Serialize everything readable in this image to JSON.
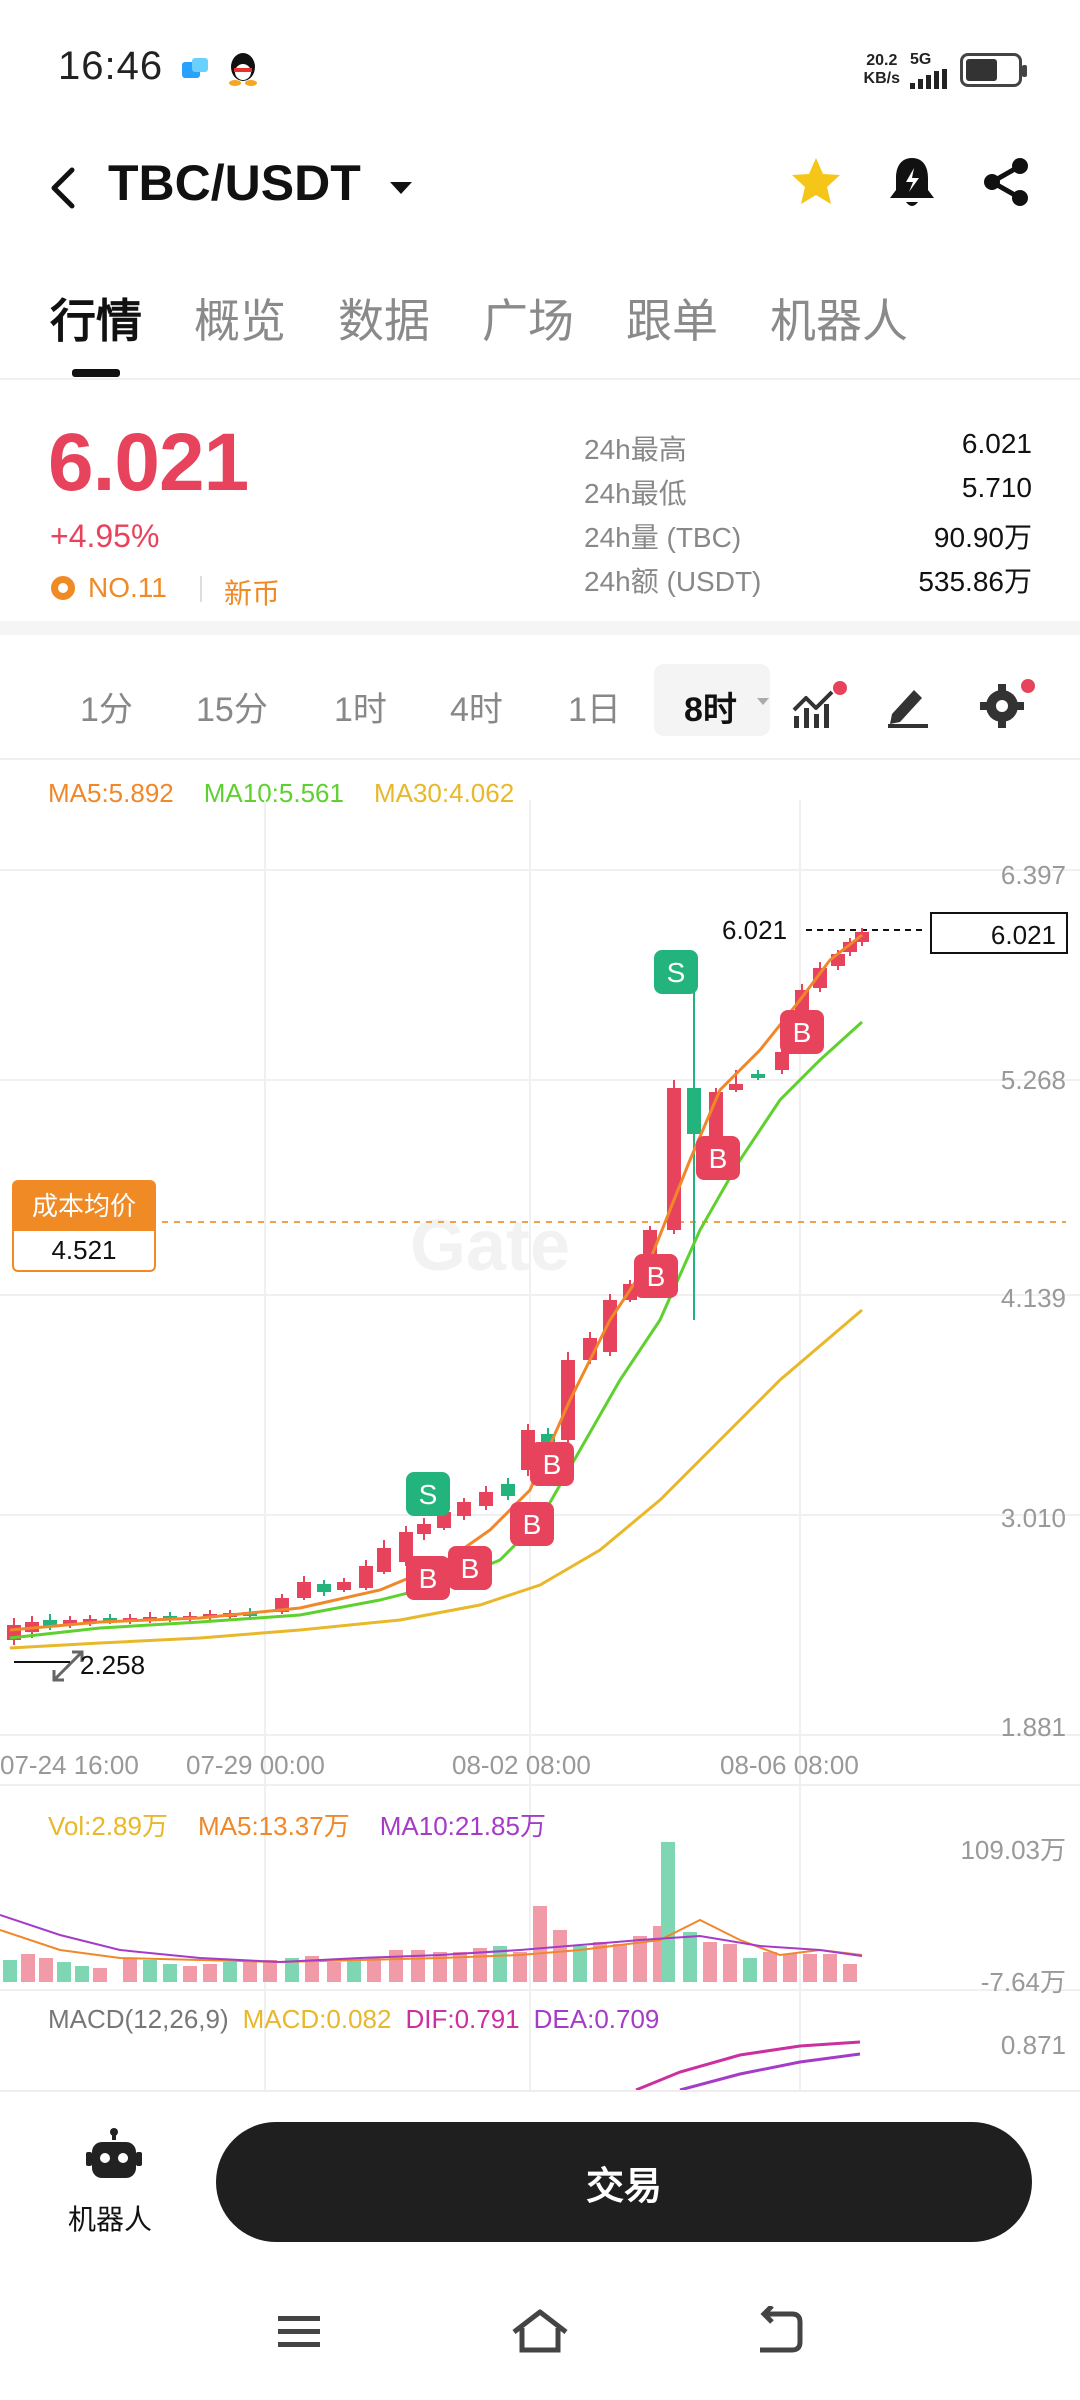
{
  "status": {
    "time": "16:46",
    "net_speed_value": "20.2",
    "net_speed_unit": "KB/s",
    "net_type": "5G",
    "battery_level": 0.55
  },
  "header": {
    "title": "TBC/USDT",
    "favorite_color": "#f5c518"
  },
  "tabs": [
    "行情",
    "概览",
    "数据",
    "广场",
    "跟单",
    "机器人"
  ],
  "summary": {
    "last_price": "6.021",
    "change_pct": "+4.95%",
    "rank": "NO.11",
    "badge": "新币",
    "stats": [
      {
        "label": "24h最高",
        "value": "6.021"
      },
      {
        "label": "24h最低",
        "value": "5.710"
      },
      {
        "label": "24h量 (TBC)",
        "value": "90.90万"
      },
      {
        "label": "24h额 (USDT)",
        "value": "535.86万"
      }
    ]
  },
  "intervals": [
    "1分",
    "15分",
    "1时",
    "4时",
    "1日",
    "8时"
  ],
  "active_interval": "8时",
  "ma_legend": {
    "ma5": "MA5:5.892",
    "ma10": "MA10:5.561",
    "ma30": "MA30:4.062"
  },
  "chart_data": {
    "type": "candlestick",
    "y_ticks": [
      "6.397",
      "5.268",
      "4.139",
      "3.010",
      "1.881"
    ],
    "x_ticks": [
      "07-24 16:00",
      "07-29 00:00",
      "08-02 08:00",
      "08-06 08:00"
    ],
    "last_price_label": "6.021",
    "last_price_tag": "6.021",
    "low_label": "2.258",
    "avg_cost_label": "成本均价",
    "avg_cost_value": "4.521",
    "ma_colors": {
      "ma5": "#f0882a",
      "ma10": "#5ed12f",
      "ma30": "#e8b82a"
    },
    "up_color": "#e8435c",
    "down_color": "#23b47e",
    "watermark": "Gate"
  },
  "volume": {
    "vol": "Vol:2.89万",
    "ma5": "MA5:13.37万",
    "ma10": "MA10:21.85万",
    "y_top": "109.03万",
    "y_bottom": "-7.64万"
  },
  "macd": {
    "title": "MACD(12,26,9)",
    "macd": "MACD:0.082",
    "dif": "DIF:0.791",
    "dea": "DEA:0.709",
    "y_top": "0.871"
  },
  "bottom": {
    "robot_label": "机器人",
    "trade_label": "交易"
  }
}
